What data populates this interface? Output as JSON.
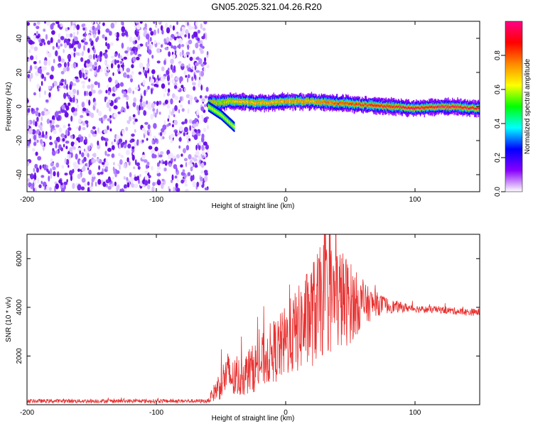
{
  "title": "GN05.2025.321.04.26.R20",
  "chart_data": [
    {
      "type": "heatmap",
      "title": "GN05.2025.321.04.26.R20",
      "xlabel": "Height of straight line (km)",
      "ylabel": "Frequency (Hz)",
      "xlim": [
        -200,
        150
      ],
      "ylim": [
        -50,
        50
      ],
      "xticks": [
        -200,
        -100,
        0,
        100
      ],
      "yticks": [
        -40,
        -20,
        0,
        20,
        40
      ],
      "xtick_labels": [
        "-200",
        "-100",
        "0",
        "100"
      ],
      "ytick_labels": [
        "-40",
        "-20",
        "0",
        "20",
        "40"
      ],
      "noise_region_x": [
        -200,
        -60
      ],
      "signal_track": {
        "x": [
          -60,
          -40,
          -20,
          0,
          20,
          40,
          60,
          80,
          100,
          120,
          150
        ],
        "freq": [
          2,
          3,
          2,
          3,
          3,
          2,
          1,
          0,
          -1,
          0,
          -1
        ],
        "amplitude": [
          0.5,
          0.6,
          0.7,
          0.7,
          0.7,
          0.8,
          0.85,
          0.9,
          0.95,
          0.95,
          0.95
        ]
      },
      "secondary_branch": {
        "x": [
          -60,
          -50,
          -40
        ],
        "freq": [
          0,
          -5,
          -12
        ]
      },
      "colorbar": {
        "label": "Normalized spectral amplitude",
        "range": [
          0,
          1
        ],
        "ticks": [
          0.0,
          0.2,
          0.4,
          0.6,
          0.8
        ],
        "tick_labels": [
          "0.0",
          "0.2",
          "0.4",
          "0.6",
          "0.8"
        ],
        "colors": [
          "#ffffff",
          "#8800ff",
          "#0000ff",
          "#00ffff",
          "#00ff00",
          "#ffff00",
          "#ff8800",
          "#ff0000",
          "#ff0088"
        ]
      }
    },
    {
      "type": "line",
      "xlabel": "Height of straight line (km)",
      "ylabel": "SNR (10 * v/v)",
      "xlim": [
        -200,
        150
      ],
      "ylim": [
        0,
        7000
      ],
      "xticks": [
        -200,
        -100,
        0,
        100
      ],
      "yticks": [
        2000,
        4000,
        6000
      ],
      "xtick_labels": [
        "-200",
        "-100",
        "0",
        "100"
      ],
      "ytick_labels": [
        "2000",
        "4000",
        "6000"
      ],
      "series": [
        {
          "name": "SNR",
          "color": "#e8302f",
          "x": [
            -200,
            -150,
            -100,
            -70,
            -60,
            -50,
            -45,
            -40,
            -30,
            -20,
            -10,
            -5,
            0,
            10,
            20,
            30,
            40,
            50,
            60,
            70,
            80,
            90,
            100,
            110,
            120,
            130,
            140,
            150
          ],
          "y": [
            150,
            150,
            150,
            150,
            150,
            900,
            1300,
            1000,
            1300,
            1700,
            2200,
            2300,
            2600,
            3100,
            3700,
            4400,
            4400,
            4200,
            4100,
            4150,
            4050,
            4000,
            3950,
            3900,
            3900,
            3850,
            3800,
            3800
          ],
          "spread": [
            80,
            80,
            80,
            80,
            80,
            700,
            900,
            800,
            900,
            1100,
            1300,
            1400,
            1500,
            1800,
            2200,
            2400,
            2300,
            1700,
            900,
            500,
            300,
            200,
            150,
            150,
            150,
            150,
            150,
            150
          ]
        }
      ]
    }
  ]
}
